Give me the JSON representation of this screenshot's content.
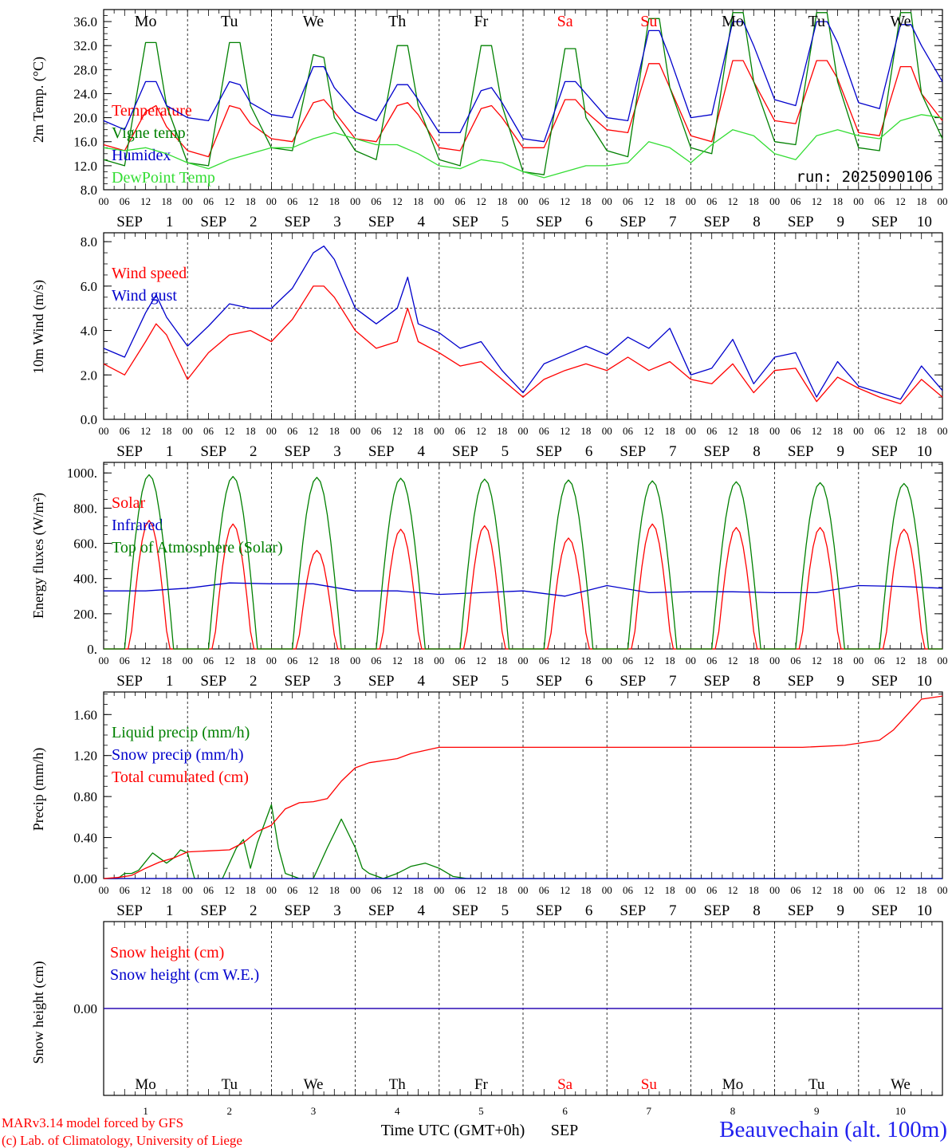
{
  "meteogram": {
    "run_label": "run: 2025090106",
    "x_axis_hours": [
      "00",
      "06",
      "12",
      "18"
    ],
    "month_label": "SEP",
    "dates": [
      "1",
      "2",
      "3",
      "4",
      "5",
      "6",
      "7",
      "8",
      "9",
      "10"
    ],
    "weekdays": [
      "Mo",
      "Tu",
      "We",
      "Th",
      "Fr",
      "Sa",
      "Su",
      "Mo",
      "Tu",
      "We"
    ],
    "weekday_colors": [
      "#000000",
      "#000000",
      "#000000",
      "#000000",
      "#000000",
      "#ff0000",
      "#ff0000",
      "#000000",
      "#000000",
      "#000000"
    ],
    "footer": {
      "model": "MARv3.14 model forced by GFS",
      "credit": "(c) Lab. of Climatology, University of Liege",
      "time_label": "Time UTC (GMT+0h)",
      "month": "SEP",
      "station": "Beauvechain (alt. 100m)"
    }
  },
  "chart_data": [
    {
      "type": "line",
      "ylabel": "2m Temp. (°C)",
      "ylim": [
        8,
        38
      ],
      "yticks": [
        "8.0",
        "12.0",
        "16.0",
        "20.0",
        "24.0",
        "28.0",
        "32.0",
        "36.0"
      ],
      "x_unit": "hours since 2025-09-01 00 UTC",
      "series": [
        {
          "name": "Temperature",
          "color": "#ff0000",
          "x": [
            0,
            6,
            12,
            15,
            18,
            24,
            30,
            36,
            39,
            42,
            48,
            54,
            60,
            63,
            66,
            72,
            78,
            84,
            87,
            90,
            96,
            102,
            108,
            111,
            114,
            120,
            126,
            132,
            135,
            138,
            144,
            150,
            156,
            159,
            162,
            168,
            174,
            180,
            183,
            186,
            192,
            198,
            204,
            207,
            210,
            216,
            222,
            228,
            231,
            234,
            240
          ],
          "y": [
            15.5,
            14.5,
            21,
            22,
            18.5,
            14.5,
            13.5,
            22,
            21.5,
            19,
            16.5,
            16,
            22.5,
            23,
            21,
            16.5,
            16,
            22,
            22.5,
            20.5,
            15,
            14.5,
            21.5,
            22,
            20,
            15,
            15,
            23,
            23,
            21,
            18,
            17.5,
            29,
            29,
            25,
            17,
            16,
            29.5,
            29.5,
            26,
            19.5,
            19,
            29.5,
            29.5,
            26.5,
            17.5,
            17,
            28.5,
            28.5,
            24,
            19.5
          ]
        },
        {
          "name": "Vigne temp",
          "color": "#008000",
          "x": [
            0,
            6,
            12,
            15,
            18,
            24,
            30,
            36,
            39,
            42,
            48,
            54,
            60,
            63,
            66,
            72,
            78,
            84,
            87,
            90,
            96,
            102,
            108,
            111,
            114,
            120,
            126,
            132,
            135,
            138,
            144,
            150,
            156,
            159,
            162,
            168,
            174,
            180,
            183,
            186,
            192,
            198,
            204,
            207,
            210,
            216,
            222,
            228,
            231,
            234,
            240
          ],
          "y": [
            13,
            12,
            32.5,
            32.5,
            22,
            12.5,
            12,
            32.5,
            32.5,
            22,
            15,
            14.5,
            30.5,
            30,
            20,
            14.5,
            13,
            32,
            32,
            22,
            13,
            12,
            32,
            32,
            22,
            11,
            10.5,
            31.5,
            31.5,
            20,
            14.5,
            13.5,
            36.5,
            36.5,
            25,
            15,
            14,
            37.5,
            37.5,
            26,
            16,
            15.5,
            37.5,
            37.5,
            26,
            15,
            14.5,
            37.5,
            37.5,
            24,
            16.5
          ]
        },
        {
          "name": "Humidex",
          "color": "#0000cc",
          "x": [
            0,
            6,
            12,
            15,
            18,
            24,
            30,
            36,
            39,
            42,
            48,
            54,
            60,
            63,
            66,
            72,
            78,
            84,
            87,
            90,
            96,
            102,
            108,
            111,
            114,
            120,
            126,
            132,
            135,
            138,
            144,
            150,
            156,
            159,
            162,
            168,
            174,
            180,
            183,
            186,
            192,
            198,
            204,
            207,
            210,
            216,
            222,
            228,
            231,
            234,
            240
          ],
          "y": [
            19.5,
            18,
            26,
            26,
            22,
            20,
            19.5,
            26,
            25.5,
            22.5,
            20.5,
            20,
            28.5,
            28.5,
            25,
            21,
            19.5,
            25.5,
            25.5,
            23,
            17.5,
            17.5,
            24.5,
            25,
            22.5,
            16.5,
            16,
            26,
            26,
            24,
            20,
            19.5,
            34.5,
            34.5,
            30,
            20,
            20.5,
            36,
            36,
            32,
            23,
            22,
            36,
            36,
            32.5,
            22.5,
            21.5,
            35.5,
            35.5,
            32,
            26
          ]
        },
        {
          "name": "DewPoint Temp",
          "color": "#33dd33",
          "x": [
            0,
            6,
            12,
            18,
            24,
            30,
            36,
            42,
            48,
            54,
            60,
            66,
            72,
            78,
            84,
            90,
            96,
            102,
            108,
            114,
            120,
            126,
            132,
            138,
            144,
            150,
            156,
            162,
            168,
            174,
            180,
            186,
            192,
            198,
            204,
            210,
            216,
            222,
            228,
            234,
            240
          ],
          "y": [
            15,
            14.5,
            15,
            14,
            12.5,
            11.5,
            13,
            14,
            15,
            15,
            16.5,
            17.5,
            16.5,
            15.5,
            15.5,
            14,
            12,
            11.5,
            13,
            12.5,
            11,
            10,
            11,
            12,
            12,
            12.5,
            16,
            15,
            12.5,
            15.5,
            18,
            17,
            14,
            13,
            17,
            18,
            17,
            16.5,
            19.5,
            20.5,
            20
          ]
        }
      ]
    },
    {
      "type": "line",
      "ylabel": "10m Wind (m/s)",
      "ylim": [
        0,
        8
      ],
      "yticks": [
        "0.0",
        "2.0",
        "4.0",
        "6.0",
        "8.0"
      ],
      "reference_line": 5.0,
      "x_unit": "hours since 2025-09-01 00 UTC",
      "series": [
        {
          "name": "Wind speed",
          "color": "#ff0000",
          "x": [
            0,
            6,
            12,
            15,
            18,
            24,
            30,
            36,
            42,
            48,
            54,
            60,
            63,
            66,
            72,
            78,
            84,
            87,
            90,
            96,
            102,
            108,
            114,
            120,
            126,
            132,
            138,
            144,
            150,
            156,
            162,
            168,
            174,
            180,
            186,
            192,
            198,
            204,
            210,
            216,
            222,
            228,
            234,
            240
          ],
          "y": [
            2.5,
            2.0,
            3.5,
            4.3,
            3.8,
            1.8,
            3.0,
            3.8,
            4.0,
            3.5,
            4.5,
            6.0,
            6.0,
            5.5,
            4.0,
            3.2,
            3.5,
            5.0,
            3.5,
            3.0,
            2.4,
            2.6,
            1.8,
            1.0,
            1.8,
            2.2,
            2.5,
            2.2,
            2.8,
            2.2,
            2.6,
            1.8,
            1.6,
            2.5,
            1.2,
            2.2,
            2.3,
            0.8,
            1.9,
            1.4,
            1.0,
            0.7,
            1.8,
            1.0
          ]
        },
        {
          "name": "Wind gust",
          "color": "#0000cc",
          "x": [
            0,
            6,
            12,
            15,
            18,
            24,
            30,
            36,
            42,
            48,
            54,
            60,
            63,
            66,
            72,
            78,
            84,
            87,
            90,
            96,
            102,
            108,
            114,
            120,
            126,
            132,
            138,
            144,
            150,
            156,
            162,
            168,
            174,
            180,
            186,
            192,
            198,
            204,
            210,
            216,
            222,
            228,
            234,
            240
          ],
          "y": [
            3.2,
            2.8,
            4.8,
            5.6,
            4.6,
            3.3,
            4.2,
            5.2,
            5.0,
            5.0,
            5.9,
            7.5,
            7.8,
            7.2,
            5.0,
            4.3,
            5.0,
            6.4,
            4.3,
            3.9,
            3.2,
            3.5,
            2.2,
            1.2,
            2.5,
            2.9,
            3.3,
            2.9,
            3.7,
            3.2,
            4.1,
            2.0,
            2.3,
            3.6,
            1.6,
            2.8,
            3.0,
            1.0,
            2.6,
            1.5,
            1.2,
            0.9,
            2.4,
            1.3
          ]
        }
      ]
    },
    {
      "type": "line",
      "ylabel": "Energy fluxes (W/m²)",
      "ylim": [
        0,
        1000
      ],
      "yticks": [
        "0.",
        "200.",
        "400.",
        "600.",
        "800.",
        "1000."
      ],
      "x_unit": "hours since 2025-09-01 00 UTC",
      "series": [
        {
          "name": "Solar",
          "color": "#ff0000",
          "daily_peaks": [
            730,
            710,
            560,
            680,
            700,
            630,
            710,
            690,
            690,
            680
          ]
        },
        {
          "name": "Infrared",
          "color": "#0000cc",
          "x": [
            0,
            12,
            24,
            36,
            48,
            60,
            72,
            84,
            96,
            108,
            120,
            132,
            144,
            156,
            168,
            180,
            192,
            204,
            216,
            228,
            240
          ],
          "y": [
            330,
            330,
            345,
            375,
            370,
            370,
            330,
            330,
            310,
            320,
            330,
            300,
            360,
            320,
            325,
            325,
            320,
            320,
            360,
            355,
            345
          ]
        },
        {
          "name": "Top of Atmosphere (Solar)",
          "color": "#008000",
          "daily_peaks": [
            990,
            980,
            975,
            970,
            965,
            960,
            955,
            950,
            945,
            940
          ]
        }
      ]
    },
    {
      "type": "line",
      "ylabel": "Precip (mm/h)",
      "ylim": [
        0,
        1.8
      ],
      "yticks": [
        "0.00",
        "0.40",
        "0.80",
        "1.20",
        "1.60"
      ],
      "x_unit": "hours since 2025-09-01 00 UTC",
      "series": [
        {
          "name": "Liquid precip (mm/h)",
          "color": "#008000",
          "x": [
            0,
            4,
            6,
            8,
            10,
            14,
            16,
            18,
            20,
            22,
            24,
            26,
            30,
            34,
            38,
            40,
            42,
            44,
            48,
            50,
            52,
            56,
            60,
            64,
            68,
            72,
            74,
            76,
            80,
            84,
            88,
            92,
            96,
            100,
            104,
            108,
            112,
            240
          ],
          "y": [
            0,
            0,
            0.05,
            0.05,
            0.08,
            0.25,
            0.2,
            0.15,
            0.2,
            0.28,
            0.25,
            0,
            0,
            0,
            0.3,
            0.38,
            0.1,
            0.35,
            0.72,
            0.3,
            0.05,
            0,
            0,
            0.3,
            0.58,
            0.3,
            0.1,
            0.05,
            0,
            0.05,
            0.12,
            0.15,
            0.1,
            0.02,
            0,
            0,
            0,
            0
          ]
        },
        {
          "name": "Snow precip (mm/h)",
          "color": "#0000cc",
          "x": [
            0,
            240
          ],
          "y": [
            0,
            0
          ]
        },
        {
          "name": "Total cumulated (cm)",
          "color": "#ff0000",
          "x": [
            0,
            4,
            8,
            12,
            16,
            20,
            24,
            30,
            36,
            40,
            44,
            48,
            52,
            56,
            60,
            64,
            68,
            72,
            76,
            80,
            84,
            88,
            92,
            96,
            104,
            112,
            120,
            200,
            212,
            222,
            226,
            230,
            234,
            240
          ],
          "y": [
            0,
            0.01,
            0.03,
            0.1,
            0.16,
            0.2,
            0.26,
            0.27,
            0.28,
            0.35,
            0.46,
            0.52,
            0.68,
            0.74,
            0.75,
            0.78,
            0.95,
            1.08,
            1.13,
            1.15,
            1.17,
            1.22,
            1.25,
            1.28,
            1.28,
            1.28,
            1.28,
            1.28,
            1.3,
            1.35,
            1.45,
            1.6,
            1.75,
            1.78
          ]
        }
      ]
    },
    {
      "type": "line",
      "ylabel": "Snow height (cm)",
      "yticks": [
        "0.00"
      ],
      "x_unit": "hours since 2025-09-01 00 UTC",
      "series": [
        {
          "name": "Snow height (cm)",
          "color": "#ff0000",
          "x": [
            0,
            240
          ],
          "y": [
            0,
            0
          ]
        },
        {
          "name": "Snow height (cm W.E.)",
          "color": "#0000cc",
          "x": [
            0,
            240
          ],
          "y": [
            0,
            0
          ]
        }
      ]
    }
  ]
}
